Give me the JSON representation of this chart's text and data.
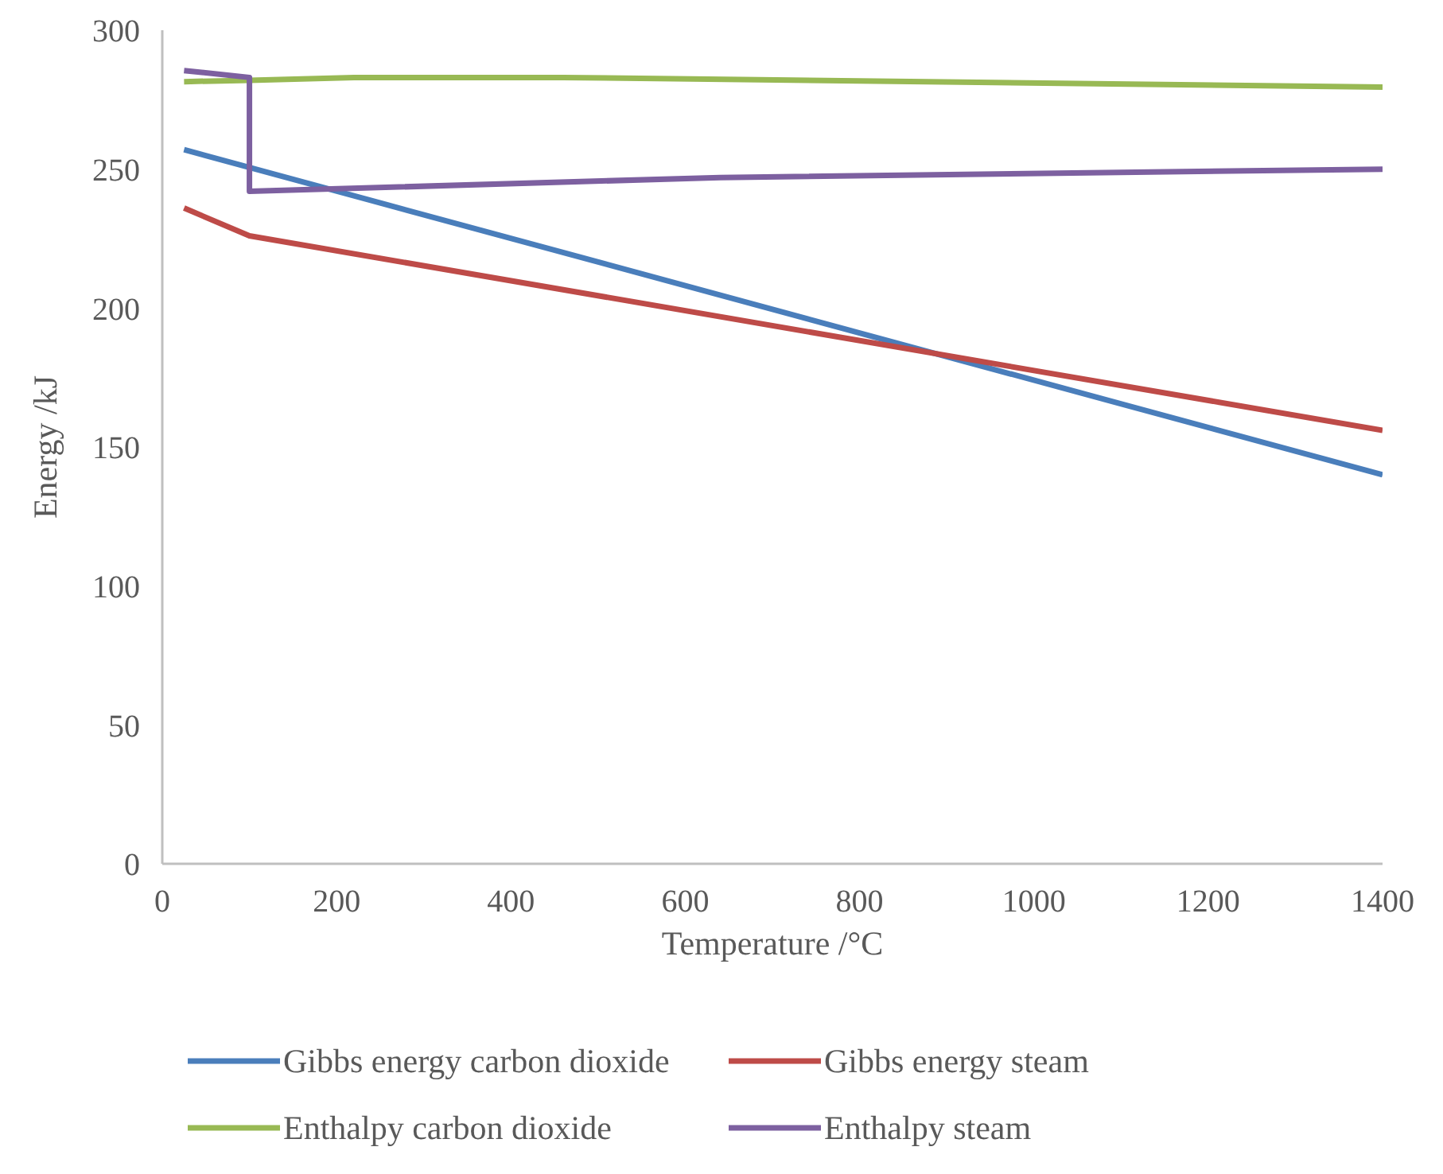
{
  "chart_data": {
    "type": "line",
    "xlabel": "Temperature /°C",
    "ylabel": "Energy /kJ",
    "xlim": [
      0,
      1400
    ],
    "xticks": [
      0,
      200,
      400,
      600,
      800,
      1000,
      1200,
      1400
    ],
    "ylim": [
      0,
      300
    ],
    "yticks": [
      0,
      50,
      100,
      150,
      200,
      250,
      300
    ],
    "grid": false,
    "legend": "bottom",
    "marker": "none",
    "line_style": "solid",
    "series": [
      {
        "name": "Gibbs energy carbon dioxide",
        "color": "#4a7ebb",
        "x": [
          25,
          1400
        ],
        "values": [
          257,
          140
        ]
      },
      {
        "name": "Gibbs energy steam",
        "color": "#be4b48",
        "x": [
          25,
          100,
          1400
        ],
        "values": [
          236,
          226,
          156
        ]
      },
      {
        "name": "Enthalpy carbon dioxide",
        "color": "#98b954",
        "x": [
          25,
          100,
          220,
          460,
          1400
        ],
        "values": [
          281.5,
          282,
          283,
          283,
          279.5
        ]
      },
      {
        "name": "Enthalpy steam",
        "color": "#7d60a0",
        "x": [
          25,
          100,
          100,
          640,
          1400
        ],
        "values": [
          285.5,
          283,
          242,
          247,
          250
        ]
      }
    ]
  }
}
